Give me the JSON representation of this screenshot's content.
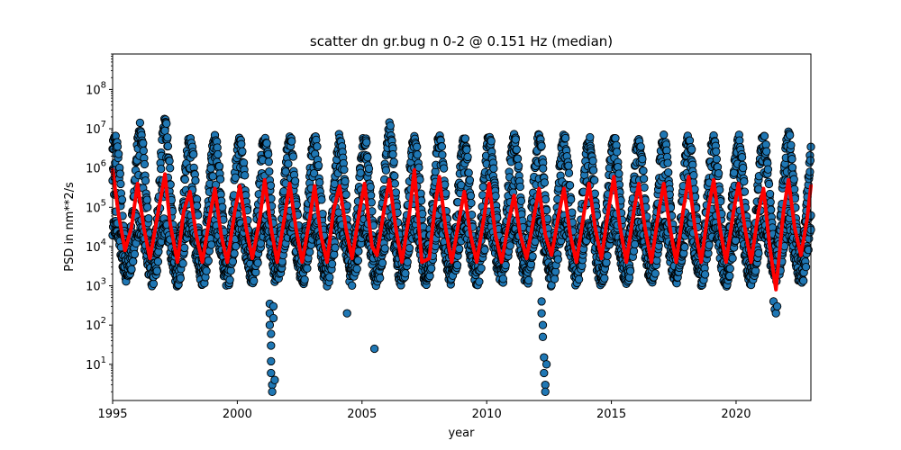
{
  "chart_data": {
    "type": "scatter",
    "title": "scatter dn gr.bug n 0-2 @ 0.151 Hz (median)",
    "xlabel": "year",
    "ylabel": "PSD in nm**2/s",
    "xlim": [
      1995,
      2023
    ],
    "ylim": [
      1.2,
      800000000
    ],
    "yscale": "log",
    "grid": false,
    "x_ticks": [
      1995,
      2000,
      2005,
      2010,
      2015,
      2020
    ],
    "y_ticks": [
      {
        "value": 10,
        "label": "10^1"
      },
      {
        "value": 100,
        "label": "10^2"
      },
      {
        "value": 1000,
        "label": "10^3"
      },
      {
        "value": 10000,
        "label": "10^4"
      },
      {
        "value": 100000,
        "label": "10^5"
      },
      {
        "value": 1000000,
        "label": "10^6"
      },
      {
        "value": 10000000,
        "label": "10^7"
      },
      {
        "value": 100000000,
        "label": "10^8"
      }
    ],
    "series": [
      {
        "kind": "scatter",
        "color": "#1f77b4",
        "edgecolor": "#000000",
        "seasonal_envelope": {
          "period_years": 1.0,
          "winter_upper_typical": 5000000,
          "winter_upper_peaks": [
            {
              "x": 1996.1,
              "y": 12000000
            },
            {
              "x": 1997.1,
              "y": 15000000
            },
            {
              "x": 2006.1,
              "y": 11000000
            },
            {
              "x": 2022.1,
              "y": 6000000
            }
          ],
          "summer_lower_typical": 1000,
          "summer_lower_min": 400
        },
        "outliers": [
          {
            "x": 2001.3,
            "y": 350
          },
          {
            "x": 2001.3,
            "y": 200
          },
          {
            "x": 2001.3,
            "y": 100
          },
          {
            "x": 2001.35,
            "y": 60
          },
          {
            "x": 2001.35,
            "y": 30
          },
          {
            "x": 2001.35,
            "y": 12
          },
          {
            "x": 2001.35,
            "y": 6
          },
          {
            "x": 2001.4,
            "y": 3
          },
          {
            "x": 2001.4,
            "y": 2
          },
          {
            "x": 2001.45,
            "y": 300
          },
          {
            "x": 2001.45,
            "y": 150
          },
          {
            "x": 2001.5,
            "y": 4
          },
          {
            "x": 2004.4,
            "y": 200
          },
          {
            "x": 2005.5,
            "y": 25
          },
          {
            "x": 2012.2,
            "y": 400
          },
          {
            "x": 2012.2,
            "y": 200
          },
          {
            "x": 2012.25,
            "y": 100
          },
          {
            "x": 2012.25,
            "y": 50
          },
          {
            "x": 2012.3,
            "y": 15
          },
          {
            "x": 2012.3,
            "y": 6
          },
          {
            "x": 2012.35,
            "y": 3
          },
          {
            "x": 2012.35,
            "y": 2
          },
          {
            "x": 2012.4,
            "y": 10
          },
          {
            "x": 2021.5,
            "y": 400
          },
          {
            "x": 2021.55,
            "y": 250
          },
          {
            "x": 2021.6,
            "y": 200
          },
          {
            "x": 2021.65,
            "y": 300
          }
        ]
      },
      {
        "kind": "line",
        "color": "#ff0000",
        "points": [
          [
            1995.0,
            900000
          ],
          [
            1995.25,
            60000
          ],
          [
            1995.5,
            8000
          ],
          [
            1995.75,
            30000
          ],
          [
            1996.0,
            400000
          ],
          [
            1996.25,
            30000
          ],
          [
            1996.5,
            5000
          ],
          [
            1996.75,
            40000
          ],
          [
            1997.1,
            700000
          ],
          [
            1997.3,
            40000
          ],
          [
            1997.6,
            4000
          ],
          [
            1997.85,
            80000
          ],
          [
            1998.1,
            250000
          ],
          [
            1998.35,
            20000
          ],
          [
            1998.6,
            4000
          ],
          [
            1998.9,
            60000
          ],
          [
            1999.1,
            300000
          ],
          [
            1999.35,
            20000
          ],
          [
            1999.6,
            4000
          ],
          [
            1999.9,
            80000
          ],
          [
            2000.1,
            350000
          ],
          [
            2000.35,
            30000
          ],
          [
            2000.6,
            5000
          ],
          [
            2000.9,
            50000
          ],
          [
            2001.1,
            500000
          ],
          [
            2001.35,
            30000
          ],
          [
            2001.6,
            4000
          ],
          [
            2001.9,
            60000
          ],
          [
            2002.1,
            400000
          ],
          [
            2002.35,
            30000
          ],
          [
            2002.6,
            4000
          ],
          [
            2002.9,
            50000
          ],
          [
            2003.1,
            350000
          ],
          [
            2003.35,
            20000
          ],
          [
            2003.6,
            4000
          ],
          [
            2003.85,
            80000
          ],
          [
            2004.1,
            350000
          ],
          [
            2004.35,
            30000
          ],
          [
            2004.6,
            5000
          ],
          [
            2004.9,
            80000
          ],
          [
            2005.1,
            400000
          ],
          [
            2005.4,
            10000
          ],
          [
            2005.6,
            6000
          ],
          [
            2005.9,
            100000
          ],
          [
            2006.1,
            500000
          ],
          [
            2006.35,
            30000
          ],
          [
            2006.6,
            4000
          ],
          [
            2006.9,
            70000
          ],
          [
            2007.1,
            900000
          ],
          [
            2007.4,
            4000
          ],
          [
            2007.7,
            5000
          ],
          [
            2007.9,
            80000
          ],
          [
            2008.1,
            600000
          ],
          [
            2008.35,
            30000
          ],
          [
            2008.6,
            4000
          ],
          [
            2008.9,
            50000
          ],
          [
            2009.1,
            250000
          ],
          [
            2009.35,
            20000
          ],
          [
            2009.6,
            4000
          ],
          [
            2009.9,
            60000
          ],
          [
            2010.1,
            400000
          ],
          [
            2010.35,
            20000
          ],
          [
            2010.6,
            4000
          ],
          [
            2010.9,
            50000
          ],
          [
            2011.1,
            200000
          ],
          [
            2011.35,
            20000
          ],
          [
            2011.6,
            5000
          ],
          [
            2011.9,
            60000
          ],
          [
            2012.1,
            300000
          ],
          [
            2012.35,
            20000
          ],
          [
            2012.6,
            6000
          ],
          [
            2012.9,
            70000
          ],
          [
            2013.1,
            300000
          ],
          [
            2013.35,
            20000
          ],
          [
            2013.6,
            4000
          ],
          [
            2013.9,
            70000
          ],
          [
            2014.1,
            400000
          ],
          [
            2014.35,
            30000
          ],
          [
            2014.6,
            5000
          ],
          [
            2014.9,
            100000
          ],
          [
            2015.1,
            600000
          ],
          [
            2015.35,
            30000
          ],
          [
            2015.6,
            4000
          ],
          [
            2015.9,
            80000
          ],
          [
            2016.1,
            400000
          ],
          [
            2016.35,
            30000
          ],
          [
            2016.6,
            4000
          ],
          [
            2016.9,
            80000
          ],
          [
            2017.1,
            400000
          ],
          [
            2017.35,
            30000
          ],
          [
            2017.6,
            4000
          ],
          [
            2017.9,
            100000
          ],
          [
            2018.1,
            600000
          ],
          [
            2018.35,
            30000
          ],
          [
            2018.6,
            4000
          ],
          [
            2018.9,
            100000
          ],
          [
            2019.1,
            500000
          ],
          [
            2019.35,
            30000
          ],
          [
            2019.6,
            4000
          ],
          [
            2019.9,
            80000
          ],
          [
            2020.1,
            400000
          ],
          [
            2020.35,
            30000
          ],
          [
            2020.6,
            4000
          ],
          [
            2020.9,
            80000
          ],
          [
            2021.1,
            300000
          ],
          [
            2021.35,
            10000
          ],
          [
            2021.6,
            800
          ],
          [
            2021.9,
            80000
          ],
          [
            2022.1,
            500000
          ],
          [
            2022.35,
            30000
          ],
          [
            2022.6,
            6000
          ],
          [
            2022.85,
            50000
          ],
          [
            2023.0,
            350000
          ]
        ]
      }
    ]
  }
}
